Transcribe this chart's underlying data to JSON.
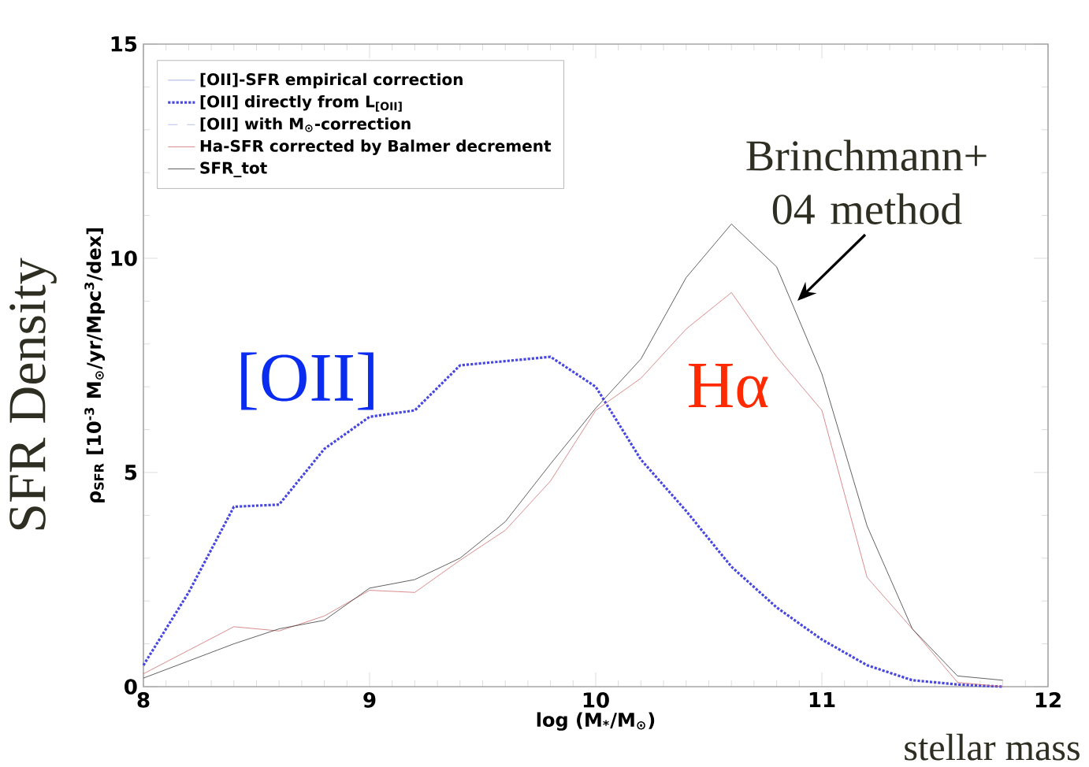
{
  "chart_data": {
    "type": "line",
    "xlabel": "log (M$_{*}$/M$_{⊙}$)",
    "ylabel": "ρ$_{SFR}$ [10$^{-3}$ M$_{⊙}$/yr/Mpc$^{3}$/dex]",
    "x": [
      8.0,
      8.2,
      8.4,
      8.6,
      8.8,
      9.0,
      9.2,
      9.4,
      9.6,
      9.8,
      10.0,
      10.2,
      10.4,
      10.6,
      10.8,
      11.0,
      11.2,
      11.4,
      11.6,
      11.8
    ],
    "series": [
      {
        "name": "[OII]-SFR empirical correction",
        "color": "#9098e0",
        "line_style": "solid",
        "values": [
          null,
          null,
          null,
          null,
          null,
          null,
          null,
          null,
          null,
          null,
          null,
          null,
          null,
          null,
          null,
          null,
          null,
          null,
          null,
          null
        ]
      },
      {
        "name": "[OII] directly from L$_{[OII]}$",
        "color": "#4848e0",
        "line_style": "dotted",
        "values": [
          0.5,
          2.2,
          4.2,
          4.25,
          5.55,
          6.3,
          6.45,
          7.5,
          7.6,
          7.7,
          7.0,
          5.3,
          4.1,
          2.8,
          1.85,
          1.1,
          0.5,
          0.15,
          0.05,
          0.0
        ]
      },
      {
        "name": "[OII] with M$_{⊙}$-correction",
        "color": "#a8b0f0",
        "line_style": "dashed",
        "values": [
          null,
          null,
          null,
          null,
          null,
          null,
          null,
          null,
          null,
          null,
          null,
          null,
          null,
          null,
          null,
          null,
          null,
          null,
          null,
          null
        ]
      },
      {
        "name": "Ha-SFR corrected by Balmer decrement",
        "color": "#d07070",
        "line_style": "solid",
        "values": [
          0.3,
          0.85,
          1.4,
          1.3,
          1.65,
          2.25,
          2.2,
          2.95,
          3.65,
          4.8,
          6.45,
          7.2,
          8.35,
          9.2,
          7.7,
          6.45,
          2.55,
          1.35,
          0.1,
          0.0
        ]
      },
      {
        "name": "SFR_tot",
        "color": "#3a3a3a",
        "line_style": "solid",
        "values": [
          0.2,
          0.6,
          1.0,
          1.35,
          1.55,
          2.3,
          2.5,
          3.0,
          3.85,
          5.2,
          6.5,
          7.65,
          9.55,
          10.8,
          9.8,
          7.3,
          3.75,
          1.35,
          0.25,
          0.15
        ]
      }
    ],
    "xlim": [
      8,
      12
    ],
    "xticks": [
      8,
      9,
      10,
      11,
      12
    ],
    "ylim": [
      0,
      15
    ],
    "yticks": [
      0,
      5,
      10,
      15
    ],
    "legend": "top left",
    "annotations": [
      "[OII]",
      "Hα",
      "Brinchmann+ 04 method",
      "SFR Density",
      "stellar mass"
    ]
  }
}
